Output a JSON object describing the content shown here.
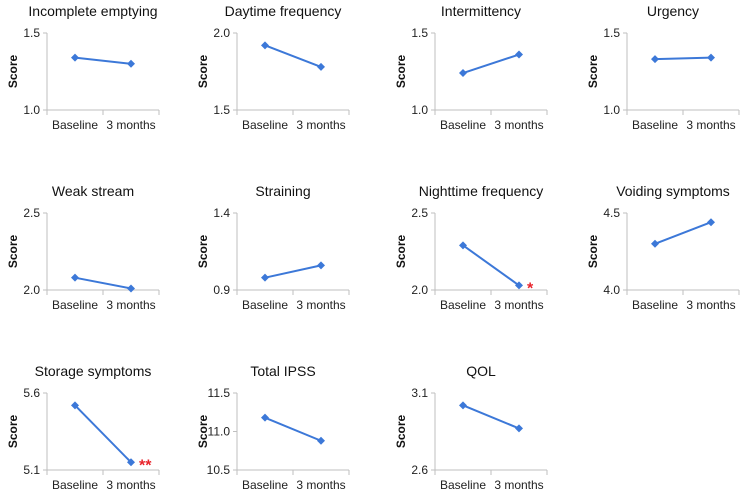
{
  "colors": {
    "line": "#3c78d8",
    "axis": "#bfbfbf",
    "asterisk": "#e8222a"
  },
  "chart_data": [
    {
      "type": "line",
      "title": "Incomplete emptying",
      "categories": [
        "Baseline",
        "3 months"
      ],
      "values": [
        1.34,
        1.3
      ],
      "ylabel": "Score",
      "ylim": [
        1.0,
        1.5
      ],
      "yticks": [
        "1.0",
        "1.5"
      ],
      "annotation": ""
    },
    {
      "type": "line",
      "title": "Daytime frequency",
      "categories": [
        "Baseline",
        "3 months"
      ],
      "values": [
        1.92,
        1.78
      ],
      "ylabel": "Score",
      "ylim": [
        1.5,
        2.0
      ],
      "yticks": [
        "1.5",
        "2.0"
      ],
      "annotation": ""
    },
    {
      "type": "line",
      "title": "Intermittency",
      "categories": [
        "Baseline",
        "3 months"
      ],
      "values": [
        1.24,
        1.36
      ],
      "ylabel": "Score",
      "ylim": [
        1.0,
        1.5
      ],
      "yticks": [
        "1.0",
        "1.5"
      ],
      "annotation": ""
    },
    {
      "type": "line",
      "title": "Urgency",
      "categories": [
        "Baseline",
        "3 months"
      ],
      "values": [
        1.33,
        1.34
      ],
      "ylabel": "Score",
      "ylim": [
        1.0,
        1.5
      ],
      "yticks": [
        "1.0",
        "1.5"
      ],
      "annotation": ""
    },
    {
      "type": "line",
      "title": "Weak stream",
      "categories": [
        "Baseline",
        "3 months"
      ],
      "values": [
        2.08,
        2.01
      ],
      "ylabel": "Score",
      "ylim": [
        2.0,
        2.5
      ],
      "yticks": [
        "2.0",
        "2.5"
      ],
      "annotation": ""
    },
    {
      "type": "line",
      "title": "Straining",
      "categories": [
        "Baseline",
        "3 months"
      ],
      "values": [
        0.98,
        1.06
      ],
      "ylabel": "Score",
      "ylim": [
        0.9,
        1.4
      ],
      "yticks": [
        "0.9",
        "1.4"
      ],
      "annotation": ""
    },
    {
      "type": "line",
      "title": "Nighttime frequency",
      "categories": [
        "Baseline",
        "3 months"
      ],
      "values": [
        2.29,
        2.03
      ],
      "ylabel": "Score",
      "ylim": [
        2.0,
        2.5
      ],
      "yticks": [
        "2.0",
        "2.5"
      ],
      "annotation": "*"
    },
    {
      "type": "line",
      "title": "Voiding symptoms",
      "categories": [
        "Baseline",
        "3 months"
      ],
      "values": [
        4.3,
        4.44
      ],
      "ylabel": "Score",
      "ylim": [
        4.0,
        4.5
      ],
      "yticks": [
        "4.0",
        "4.5"
      ],
      "annotation": ""
    },
    {
      "type": "line",
      "title": "Storage symptoms",
      "categories": [
        "Baseline",
        "3 months"
      ],
      "values": [
        5.52,
        5.15
      ],
      "ylabel": "Score",
      "ylim": [
        5.1,
        5.6
      ],
      "yticks": [
        "5.1",
        "5.6"
      ],
      "annotation": "**"
    },
    {
      "type": "line",
      "title": "Total IPSS",
      "categories": [
        "Baseline",
        "3 months"
      ],
      "values": [
        11.18,
        10.88
      ],
      "ylabel": "Score",
      "ylim": [
        10.5,
        11.5
      ],
      "yticks": [
        "10.5",
        "11.0",
        "11.5"
      ],
      "annotation": ""
    },
    {
      "type": "line",
      "title": "QOL",
      "categories": [
        "Baseline",
        "3 months"
      ],
      "values": [
        3.02,
        2.87
      ],
      "ylabel": "Score",
      "ylim": [
        2.6,
        3.1
      ],
      "yticks": [
        "2.6",
        "3.1"
      ],
      "annotation": ""
    }
  ]
}
